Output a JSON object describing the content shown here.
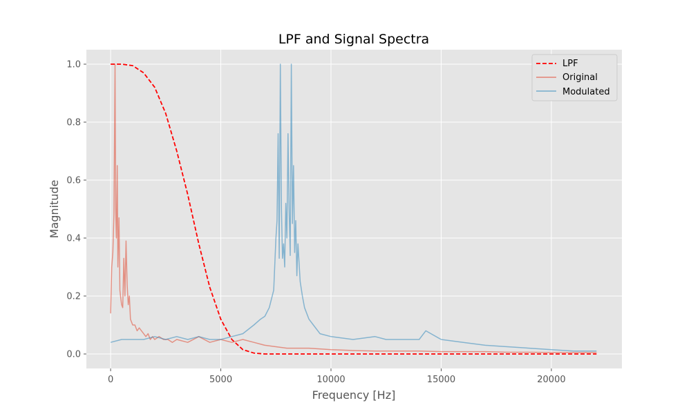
{
  "chart_data": {
    "type": "line",
    "title": "LPF and Signal Spectra",
    "xlabel": "Frequency [Hz]",
    "ylabel": "Magnitude",
    "xlim": [
      -1100,
      23200
    ],
    "ylim": [
      -0.05,
      1.05
    ],
    "xticks": [
      0,
      5000,
      10000,
      15000,
      20000
    ],
    "xtick_labels": [
      "0",
      "5000",
      "10000",
      "15000",
      "20000"
    ],
    "yticks": [
      0.0,
      0.2,
      0.4,
      0.6,
      0.8,
      1.0
    ],
    "ytick_labels": [
      "0.0",
      "0.2",
      "0.4",
      "0.6",
      "0.8",
      "1.0"
    ],
    "grid": true,
    "legend_position": "top-right",
    "series": [
      {
        "name": "LPF",
        "style": "dashed",
        "color": "#ff0000",
        "x": [
          0,
          500,
          1000,
          1500,
          2000,
          2500,
          3000,
          3500,
          4000,
          4500,
          5000,
          5500,
          6000,
          6500,
          7000,
          8000,
          10000,
          15000,
          20000,
          22050
        ],
        "y": [
          1.0,
          1.0,
          0.995,
          0.97,
          0.92,
          0.83,
          0.7,
          0.55,
          0.38,
          0.23,
          0.12,
          0.05,
          0.015,
          0.003,
          0.0,
          0.0,
          0.0,
          0.0,
          0.0,
          0.0
        ]
      },
      {
        "name": "Original",
        "style": "solid",
        "color": "#e24a33",
        "x": [
          0,
          50,
          100,
          150,
          200,
          230,
          260,
          300,
          330,
          380,
          420,
          450,
          500,
          550,
          600,
          650,
          700,
          750,
          800,
          850,
          900,
          1000,
          1100,
          1200,
          1300,
          1400,
          1500,
          1600,
          1700,
          1800,
          1900,
          2000,
          2200,
          2400,
          2600,
          2800,
          3000,
          3500,
          4000,
          4500,
          5000,
          5500,
          6000,
          6500,
          7000,
          8000,
          9000,
          10000,
          11000,
          12000,
          13000,
          14000,
          15000,
          16000,
          17000,
          18000,
          19000,
          20000,
          21000,
          22050
        ],
        "y": [
          0.14,
          0.3,
          0.35,
          0.48,
          1.0,
          0.5,
          0.4,
          0.65,
          0.3,
          0.47,
          0.22,
          0.2,
          0.17,
          0.16,
          0.33,
          0.2,
          0.39,
          0.24,
          0.17,
          0.2,
          0.12,
          0.1,
          0.1,
          0.08,
          0.09,
          0.08,
          0.07,
          0.06,
          0.07,
          0.05,
          0.06,
          0.05,
          0.06,
          0.05,
          0.05,
          0.04,
          0.05,
          0.04,
          0.06,
          0.04,
          0.05,
          0.04,
          0.05,
          0.04,
          0.03,
          0.02,
          0.02,
          0.015,
          0.012,
          0.01,
          0.01,
          0.01,
          0.008,
          0.008,
          0.008,
          0.006,
          0.006,
          0.005,
          0.005,
          0.005
        ]
      },
      {
        "name": "Modulated",
        "style": "solid",
        "color": "#348abd",
        "x": [
          0,
          500,
          1000,
          1500,
          2000,
          2500,
          3000,
          3500,
          4000,
          4500,
          5000,
          5500,
          6000,
          6500,
          6800,
          7000,
          7200,
          7300,
          7400,
          7500,
          7550,
          7600,
          7650,
          7700,
          7750,
          7800,
          7850,
          7900,
          7950,
          8000,
          8050,
          8100,
          8150,
          8200,
          8250,
          8300,
          8350,
          8400,
          8450,
          8500,
          8600,
          8700,
          8800,
          9000,
          9200,
          9500,
          10000,
          11000,
          12000,
          12500,
          13000,
          14000,
          14300,
          15000,
          16000,
          17000,
          18000,
          19000,
          20000,
          21000,
          22050
        ],
        "y": [
          0.04,
          0.05,
          0.05,
          0.05,
          0.06,
          0.05,
          0.06,
          0.05,
          0.06,
          0.05,
          0.05,
          0.06,
          0.07,
          0.1,
          0.12,
          0.13,
          0.16,
          0.19,
          0.22,
          0.4,
          0.46,
          0.76,
          0.33,
          1.0,
          0.5,
          0.33,
          0.38,
          0.3,
          0.52,
          0.4,
          0.76,
          0.5,
          0.34,
          1.0,
          0.45,
          0.65,
          0.35,
          0.46,
          0.27,
          0.38,
          0.25,
          0.2,
          0.16,
          0.12,
          0.1,
          0.07,
          0.06,
          0.05,
          0.06,
          0.05,
          0.05,
          0.05,
          0.08,
          0.05,
          0.04,
          0.03,
          0.025,
          0.02,
          0.015,
          0.01,
          0.01
        ]
      }
    ]
  }
}
